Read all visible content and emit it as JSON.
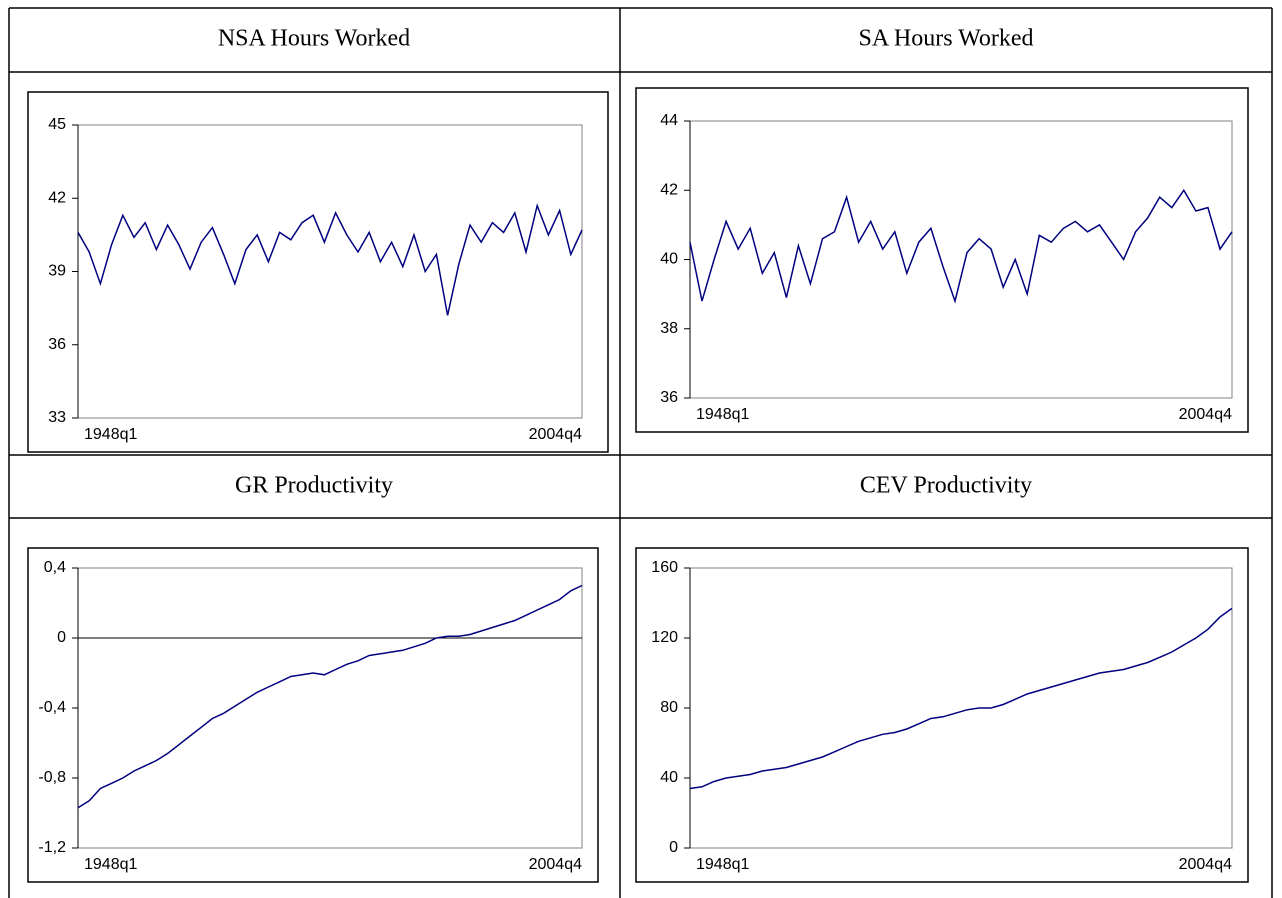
{
  "chart_data": [
    {
      "type": "line",
      "title": "NSA Hours Worked",
      "color": "#000080",
      "categories": [
        "1948q1",
        null,
        null,
        null,
        null,
        null,
        null,
        null,
        null,
        null,
        null,
        null,
        null,
        null,
        null,
        null,
        null,
        null,
        null,
        null,
        null,
        null,
        null,
        null,
        null,
        null,
        null,
        null,
        null,
        null,
        null,
        null,
        null,
        null,
        null,
        null,
        null,
        null,
        null,
        null,
        null,
        null,
        null,
        null,
        null,
        "2004q4"
      ],
      "values": [
        40.6,
        39.8,
        38.5,
        40.1,
        41.3,
        40.4,
        41.0,
        39.9,
        40.9,
        40.1,
        39.1,
        40.2,
        40.8,
        39.7,
        38.5,
        39.9,
        40.5,
        39.4,
        40.6,
        40.3,
        41.0,
        41.3,
        40.2,
        41.4,
        40.5,
        39.8,
        40.6,
        39.4,
        40.2,
        39.2,
        40.5,
        39.0,
        39.7,
        37.2,
        39.3,
        40.9,
        40.2,
        41.0,
        40.6,
        41.4,
        39.8,
        41.7,
        40.5,
        41.5,
        39.7,
        40.7
      ],
      "ylim": [
        33,
        45
      ],
      "yticks": [
        33,
        36,
        39,
        42,
        45
      ]
    },
    {
      "type": "line",
      "title": "SA Hours Worked",
      "color": "#000080",
      "categories": [
        "1948q1",
        null,
        null,
        null,
        null,
        null,
        null,
        null,
        null,
        null,
        null,
        null,
        null,
        null,
        null,
        null,
        null,
        null,
        null,
        null,
        null,
        null,
        null,
        null,
        null,
        null,
        null,
        null,
        null,
        null,
        null,
        null,
        null,
        null,
        null,
        null,
        null,
        null,
        null,
        null,
        null,
        null,
        null,
        null,
        null,
        "2004q4"
      ],
      "values": [
        40.5,
        38.8,
        40.0,
        41.1,
        40.3,
        40.9,
        39.6,
        40.2,
        38.9,
        40.4,
        39.3,
        40.6,
        40.8,
        41.8,
        40.5,
        41.1,
        40.3,
        40.8,
        39.6,
        40.5,
        40.9,
        39.8,
        38.8,
        40.2,
        40.6,
        40.3,
        39.2,
        40.0,
        39.0,
        40.7,
        40.5,
        40.9,
        41.1,
        40.8,
        41.0,
        40.5,
        40.0,
        40.8,
        41.2,
        41.8,
        41.5,
        42.0,
        41.4,
        41.5,
        40.3,
        40.8
      ],
      "ylim": [
        36,
        44
      ],
      "yticks": [
        36,
        38,
        40,
        42,
        44
      ]
    },
    {
      "type": "line",
      "title": "GR Productivity",
      "color": "#000080",
      "categories": [
        "1948q1",
        null,
        null,
        null,
        null,
        null,
        null,
        null,
        null,
        null,
        null,
        null,
        null,
        null,
        null,
        null,
        null,
        null,
        null,
        null,
        null,
        null,
        null,
        null,
        null,
        null,
        null,
        null,
        null,
        null,
        null,
        null,
        null,
        null,
        null,
        null,
        null,
        null,
        null,
        null,
        null,
        null,
        null,
        null,
        null,
        "2004q4"
      ],
      "values": [
        -0.97,
        -0.93,
        -0.86,
        -0.83,
        -0.8,
        -0.76,
        -0.73,
        -0.7,
        -0.66,
        -0.61,
        -0.56,
        -0.51,
        -0.46,
        -0.43,
        -0.39,
        -0.35,
        -0.31,
        -0.28,
        -0.25,
        -0.22,
        -0.21,
        -0.2,
        -0.21,
        -0.18,
        -0.15,
        -0.13,
        -0.1,
        -0.09,
        -0.08,
        -0.07,
        -0.05,
        -0.03,
        0.0,
        0.01,
        0.01,
        0.02,
        0.04,
        0.06,
        0.08,
        0.1,
        0.13,
        0.16,
        0.19,
        0.22,
        0.27,
        0.3
      ],
      "ylim": [
        -1.2,
        0.4
      ],
      "yticks": [
        {
          "value": -1.2,
          "label": "-1,2"
        },
        {
          "value": -0.8,
          "label": "-0,8"
        },
        {
          "value": -0.4,
          "label": "-0,4"
        },
        0,
        {
          "value": 0.4,
          "label": "0,4"
        }
      ],
      "zero_line": true
    },
    {
      "type": "line",
      "title": "CEV Productivity",
      "color": "#000080",
      "categories": [
        "1948q1",
        null,
        null,
        null,
        null,
        null,
        null,
        null,
        null,
        null,
        null,
        null,
        null,
        null,
        null,
        null,
        null,
        null,
        null,
        null,
        null,
        null,
        null,
        null,
        null,
        null,
        null,
        null,
        null,
        null,
        null,
        null,
        null,
        null,
        null,
        null,
        null,
        null,
        null,
        null,
        null,
        null,
        null,
        null,
        null,
        "2004q4"
      ],
      "values": [
        34,
        35,
        38,
        40,
        41,
        42,
        44,
        45,
        46,
        48,
        50,
        52,
        55,
        58,
        61,
        63,
        65,
        66,
        68,
        71,
        74,
        75,
        77,
        79,
        80,
        80,
        82,
        85,
        88,
        90,
        92,
        94,
        96,
        98,
        100,
        101,
        102,
        104,
        106,
        109,
        112,
        116,
        120,
        125,
        132,
        137
      ],
      "ylim": [
        0,
        160
      ],
      "yticks": [
        0,
        40,
        80,
        120,
        160
      ]
    }
  ]
}
